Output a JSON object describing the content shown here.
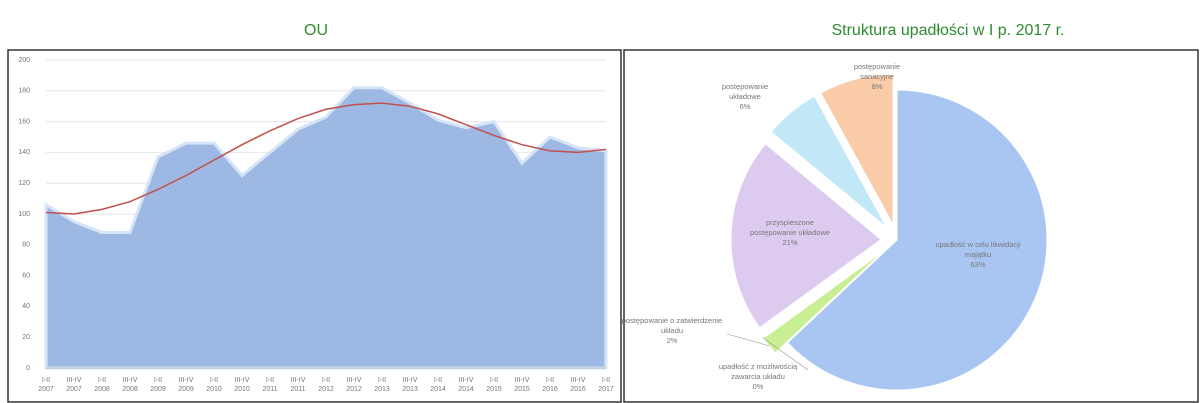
{
  "chart_data": [
    {
      "type": "area",
      "title": "OU",
      "categories": [
        "I-II 2007",
        "III-IV 2007",
        "I-II 2008",
        "III-IV 2008",
        "I-II 2009",
        "III-IV 2009",
        "I-II 2010",
        "III-IV 2010",
        "I-II 2011",
        "III-IV 2011",
        "I-II 2012",
        "III-IV 2012",
        "I-II 2013",
        "III-IV 2013",
        "I-II 2014",
        "III-IV 2014",
        "I-II 2015",
        "III-IV 2015",
        "I-II 2016",
        "III-IV 2016",
        "I-II 2017"
      ],
      "series": [
        {
          "color": "#9db8e3",
          "values": [
            106,
            95,
            88,
            88,
            137,
            146,
            146,
            125,
            140,
            155,
            163,
            182,
            182,
            172,
            161,
            156,
            160,
            133,
            150,
            143,
            141
          ]
        },
        {
          "type": "line",
          "color": "#c0504d",
          "values": [
            101,
            100,
            103,
            108,
            116,
            125,
            135,
            145,
            154,
            162,
            168,
            171,
            172,
            170,
            165,
            158,
            151,
            145,
            141,
            140,
            142
          ]
        }
      ],
      "ylim": [
        0,
        200
      ],
      "yticks": [
        0,
        20,
        40,
        60,
        80,
        100,
        120,
        140,
        160,
        180,
        200
      ],
      "grid": true
    },
    {
      "type": "pie",
      "title": "Struktura upadłości w I p. 2017 r.",
      "labels": [
        "upadłość w celu likwidacji majątku",
        "postępowanie o zatwierdzenie układu",
        "upadłość z możliwością zawarcia układu",
        "przyspieszone postępowanie układowe",
        "postępowanie układowe",
        "postępowanie sanacyjne"
      ],
      "values": [
        63,
        2,
        0,
        21,
        6,
        8
      ],
      "value_labels": [
        "63%",
        "2%",
        "0%",
        "21%",
        "6%",
        "8%"
      ],
      "colors": [
        "#a9c6f2",
        "#c9ef94",
        "#e8f0d8",
        "#dccbef",
        "#c2e8f8",
        "#f9cba8"
      ]
    }
  ]
}
